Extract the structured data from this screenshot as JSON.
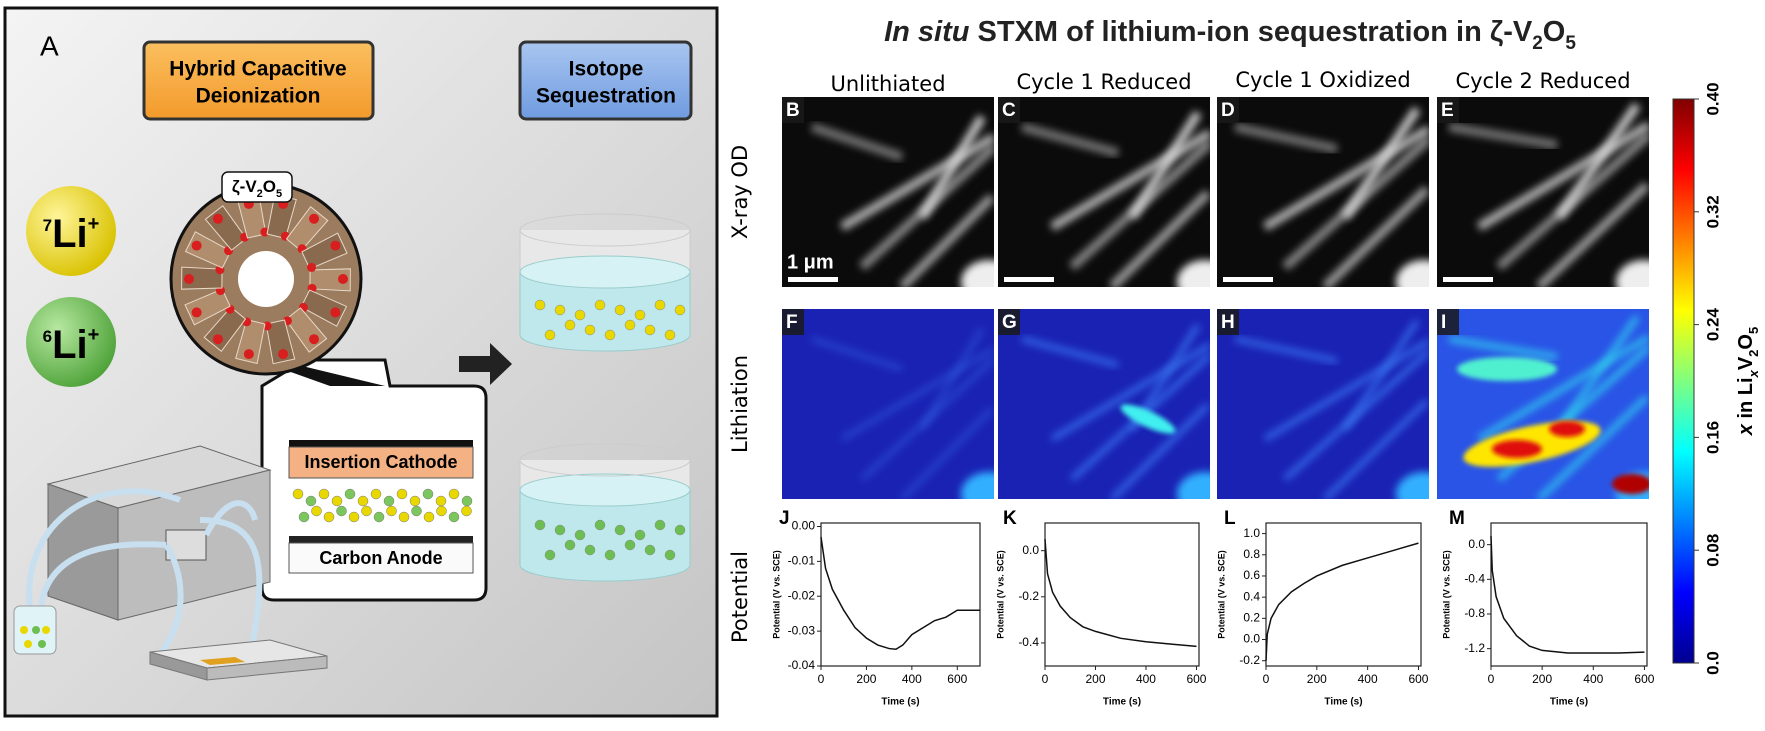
{
  "panel_a": {
    "letter": "A",
    "hcdi": [
      "Hybrid Capacitive",
      "Deionization"
    ],
    "isotope": [
      "Isotope",
      "Sequestration"
    ],
    "li7": [
      "7",
      "Li",
      "+"
    ],
    "li6": [
      "6",
      "Li",
      "+"
    ],
    "crystal": [
      "ζ-V",
      "2",
      "O",
      "5"
    ],
    "cathode": "Insertion Cathode",
    "anode": "Carbon Anode"
  },
  "title": [
    "In situ",
    " STXM of lithium-ion sequestration in ζ-V",
    "2",
    "O",
    "5"
  ],
  "columns": [
    "Unlithiated",
    "Cycle 1 Reduced",
    "Cycle 1 Oxidized",
    "Cycle 2 Reduced"
  ],
  "rows": [
    "X-ray OD",
    "Lithiation",
    "Potential"
  ],
  "image_letters": [
    [
      "B",
      "C",
      "D",
      "E"
    ],
    [
      "F",
      "G",
      "H",
      "I"
    ]
  ],
  "scale_bar": "1 μm",
  "colorbar": {
    "label": [
      "x",
      " in Li",
      "x",
      "V",
      "2",
      "O",
      "5"
    ],
    "ylim": [
      0,
      0.4
    ],
    "yticks": [
      {
        "value": 0,
        "label": "0.0"
      },
      0.08,
      0.16,
      0.24,
      0.32,
      {
        "value": 0.4,
        "label": "0.40"
      }
    ]
  },
  "plots": [
    {
      "type": "line",
      "letter": "J",
      "xlabel": "Time (s)",
      "ylabel": "Potential (V vs. SCE)",
      "x": [
        0,
        20,
        50,
        100,
        150,
        200,
        250,
        300,
        330,
        360,
        400,
        450,
        500,
        550,
        600,
        650,
        700
      ],
      "values": [
        -0.003,
        -0.012,
        -0.018,
        -0.024,
        -0.029,
        -0.032,
        -0.034,
        -0.035,
        -0.0352,
        -0.034,
        -0.031,
        -0.029,
        -0.027,
        -0.026,
        -0.024,
        -0.024,
        -0.024
      ],
      "xlim": [
        0,
        700
      ],
      "ylim": [
        -0.04,
        0.001
      ],
      "xticks": [
        0,
        200,
        400,
        600
      ],
      "yticks": [
        {
          "value": 0,
          "label": "0.00"
        },
        -0.01,
        -0.02,
        -0.03,
        -0.04
      ]
    },
    {
      "type": "line",
      "letter": "K",
      "xlabel": "Time (s)",
      "ylabel": "Potential (V vs. SCE)",
      "x": [
        0,
        10,
        30,
        60,
        100,
        150,
        200,
        300,
        400,
        500,
        600
      ],
      "values": [
        0.05,
        -0.1,
        -0.18,
        -0.24,
        -0.29,
        -0.33,
        -0.35,
        -0.38,
        -0.395,
        -0.405,
        -0.415
      ],
      "xlim": [
        0,
        610
      ],
      "ylim": [
        -0.5,
        0.12
      ],
      "xticks": [
        0,
        200,
        400,
        600
      ],
      "yticks": [
        {
          "value": 0,
          "label": "0.0"
        },
        -0.2,
        -0.4
      ]
    },
    {
      "type": "line",
      "letter": "L",
      "xlabel": "Time (s)",
      "ylabel": "Potential (V vs. SCE)",
      "x": [
        0,
        5,
        20,
        50,
        100,
        150,
        200,
        300,
        400,
        500,
        600
      ],
      "values": [
        -0.2,
        0.05,
        0.2,
        0.33,
        0.45,
        0.53,
        0.6,
        0.7,
        0.77,
        0.84,
        0.91
      ],
      "xlim": [
        0,
        610
      ],
      "ylim": [
        -0.25,
        1.1
      ],
      "xticks": [
        0,
        200,
        400,
        600
      ],
      "yticks": [
        -0.2,
        {
          "value": 0,
          "label": "0.0"
        },
        0.2,
        0.4,
        0.6,
        0.8,
        {
          "value": 1,
          "label": "1.0"
        }
      ]
    },
    {
      "type": "line",
      "letter": "M",
      "xlabel": "Time (s)",
      "ylabel": "Potential (V vs. SCE)",
      "x": [
        0,
        5,
        20,
        50,
        100,
        150,
        200,
        300,
        400,
        500,
        600
      ],
      "values": [
        0.1,
        -0.3,
        -0.6,
        -0.85,
        -1.05,
        -1.17,
        -1.22,
        -1.25,
        -1.25,
        -1.25,
        -1.24
      ],
      "xlim": [
        0,
        610
      ],
      "ylim": [
        -1.4,
        0.25
      ],
      "xticks": [
        0,
        200,
        400,
        600
      ],
      "yticks": [
        {
          "value": 0,
          "label": "0.0"
        },
        -0.4,
        -0.8,
        -1.2
      ]
    }
  ]
}
